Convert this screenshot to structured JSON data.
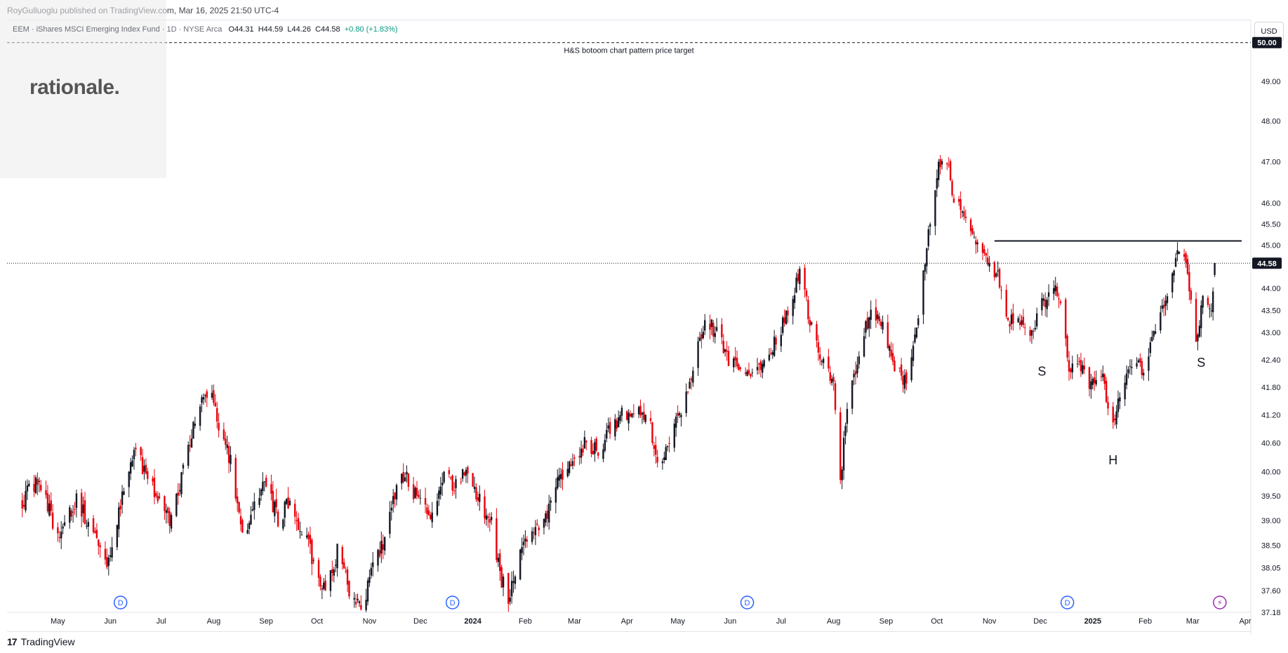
{
  "header": {
    "published_line": "RoyGulluoglu published on TradingView.com, Mar 16, 2025 21:50 UTC-4"
  },
  "legend": {
    "symbol": "EEM · iShares MSCI Emerging Index Fund · 1D · NYSE Arca",
    "open": "O44.31",
    "high": "H44.59",
    "low": "L44.26",
    "close": "C44.58",
    "change": "+0.80 (+1.83%)"
  },
  "watermark": {
    "text": "rationale."
  },
  "currency_button": "USD",
  "footer": {
    "logo_mark": "17",
    "brand": "TradingView"
  },
  "colors": {
    "up": "#131722",
    "down": "#e8000b",
    "dividend_marker": "#2962ff",
    "event_marker": "#9c27b0",
    "target_label_bg": "#131722"
  },
  "chart_data": {
    "type": "candlestick",
    "title": "",
    "xlabel": "",
    "ylabel": "",
    "ylim": [
      37.18,
      50.6
    ],
    "y_scale": "log",
    "y_ticks": [
      "50.00",
      "49.00",
      "48.00",
      "47.00",
      "46.00",
      "45.50",
      "45.00",
      "44.00",
      "43.50",
      "43.00",
      "42.40",
      "41.80",
      "41.20",
      "40.60",
      "40.00",
      "39.50",
      "39.00",
      "38.50",
      "38.05",
      "37.60",
      "37.18"
    ],
    "x_ticks": [
      "May",
      "Jun",
      "Jul",
      "Aug",
      "Sep",
      "Oct",
      "Nov",
      "Dec",
      "2024",
      "Feb",
      "Mar",
      "Apr",
      "May",
      "Jun",
      "Jul",
      "Aug",
      "Sep",
      "Oct",
      "Nov",
      "Dec",
      "2025",
      "Feb",
      "Mar",
      "Apr"
    ],
    "grid": false,
    "last_price": 44.58,
    "last_price_label": "44.58",
    "target_price": 50.0,
    "target_price_label": "50.00",
    "target_annotation": "H&S botoom chart pattern price target",
    "neckline_price": 45.1,
    "pattern_labels": [
      {
        "text": "S",
        "date": "2024-12-02",
        "price": 42.2
      },
      {
        "text": "H",
        "date": "2025-01-13",
        "price": 40.3
      },
      {
        "text": "S",
        "date": "2025-03-06",
        "price": 42.4
      }
    ],
    "dividend_markers": [
      {
        "text": "D",
        "date": "2023-06-07"
      },
      {
        "text": "D",
        "date": "2023-12-20"
      },
      {
        "text": "D",
        "date": "2024-06-11"
      },
      {
        "text": "D",
        "date": "2024-12-17"
      }
    ],
    "event_markers": [
      {
        "text": "⚡",
        "date": "2025-03-17"
      }
    ],
    "anchors": [
      [
        "2023-04-10",
        39.4
      ],
      [
        "2023-04-20",
        39.9
      ],
      [
        "2023-05-01",
        38.6
      ],
      [
        "2023-05-12",
        39.4
      ],
      [
        "2023-05-22",
        38.8
      ],
      [
        "2023-05-31",
        38.1
      ],
      [
        "2023-06-09",
        39.6
      ],
      [
        "2023-06-16",
        40.6
      ],
      [
        "2023-06-21",
        40.0
      ],
      [
        "2023-06-30",
        39.4
      ],
      [
        "2023-07-06",
        39.0
      ],
      [
        "2023-07-14",
        40.0
      ],
      [
        "2023-07-20",
        41.0
      ],
      [
        "2023-07-26",
        41.5
      ],
      [
        "2023-07-31",
        41.8
      ],
      [
        "2023-08-04",
        41.0
      ],
      [
        "2023-08-11",
        40.2
      ],
      [
        "2023-08-18",
        38.6
      ],
      [
        "2023-08-25",
        39.3
      ],
      [
        "2023-09-01",
        39.8
      ],
      [
        "2023-09-08",
        39.0
      ],
      [
        "2023-09-15",
        39.4
      ],
      [
        "2023-09-22",
        38.8
      ],
      [
        "2023-09-29",
        38.2
      ],
      [
        "2023-10-06",
        37.5
      ],
      [
        "2023-10-13",
        38.4
      ],
      [
        "2023-10-20",
        37.6
      ],
      [
        "2023-10-27",
        37.2
      ],
      [
        "2023-11-02",
        37.9
      ],
      [
        "2023-11-10",
        38.6
      ],
      [
        "2023-11-16",
        39.6
      ],
      [
        "2023-11-22",
        39.9
      ],
      [
        "2023-12-01",
        39.3
      ],
      [
        "2023-12-08",
        39.0
      ],
      [
        "2023-12-15",
        40.1
      ],
      [
        "2023-12-20",
        39.6
      ],
      [
        "2023-12-28",
        40.1
      ],
      [
        "2024-01-05",
        39.4
      ],
      [
        "2024-01-12",
        38.9
      ],
      [
        "2024-01-17",
        37.9
      ],
      [
        "2024-01-22",
        37.5
      ],
      [
        "2024-01-29",
        38.3
      ],
      [
        "2024-02-05",
        38.7
      ],
      [
        "2024-02-12",
        38.9
      ],
      [
        "2024-02-20",
        39.8
      ],
      [
        "2024-02-28",
        40.2
      ],
      [
        "2024-03-08",
        40.6
      ],
      [
        "2024-03-15",
        40.4
      ],
      [
        "2024-03-22",
        40.9
      ],
      [
        "2024-03-29",
        41.2
      ],
      [
        "2024-04-08",
        41.4
      ],
      [
        "2024-04-15",
        40.9
      ],
      [
        "2024-04-19",
        40.1
      ],
      [
        "2024-04-26",
        40.7
      ],
      [
        "2024-05-03",
        41.3
      ],
      [
        "2024-05-10",
        42.2
      ],
      [
        "2024-05-17",
        43.3
      ],
      [
        "2024-05-24",
        43.0
      ],
      [
        "2024-05-31",
        42.4
      ],
      [
        "2024-06-07",
        42.2
      ],
      [
        "2024-06-14",
        42.1
      ],
      [
        "2024-06-21",
        42.4
      ],
      [
        "2024-06-28",
        42.8
      ],
      [
        "2024-07-05",
        43.5
      ],
      [
        "2024-07-12",
        44.4
      ],
      [
        "2024-07-19",
        43.1
      ],
      [
        "2024-07-26",
        42.3
      ],
      [
        "2024-08-01",
        42.0
      ],
      [
        "2024-08-05",
        39.8
      ],
      [
        "2024-08-09",
        41.3
      ],
      [
        "2024-08-16",
        42.6
      ],
      [
        "2024-08-23",
        43.5
      ],
      [
        "2024-08-30",
        43.2
      ],
      [
        "2024-09-06",
        42.3
      ],
      [
        "2024-09-13",
        41.9
      ],
      [
        "2024-09-20",
        43.3
      ],
      [
        "2024-09-26",
        45.2
      ],
      [
        "2024-10-02",
        46.9
      ],
      [
        "2024-10-07",
        47.1
      ],
      [
        "2024-10-11",
        46.0
      ],
      [
        "2024-10-18",
        45.7
      ],
      [
        "2024-10-25",
        45.1
      ],
      [
        "2024-10-31",
        44.6
      ],
      [
        "2024-11-06",
        44.3
      ],
      [
        "2024-11-12",
        43.3
      ],
      [
        "2024-11-18",
        43.2
      ],
      [
        "2024-11-25",
        43.0
      ],
      [
        "2024-12-02",
        43.6
      ],
      [
        "2024-12-09",
        44.1
      ],
      [
        "2024-12-13",
        43.6
      ],
      [
        "2024-12-18",
        42.2
      ],
      [
        "2024-12-24",
        42.4
      ],
      [
        "2024-12-31",
        41.8
      ],
      [
        "2025-01-06",
        42.2
      ],
      [
        "2025-01-10",
        41.4
      ],
      [
        "2025-01-13",
        40.9
      ],
      [
        "2025-01-17",
        41.7
      ],
      [
        "2025-01-24",
        42.4
      ],
      [
        "2025-01-31",
        42.1
      ],
      [
        "2025-02-07",
        43.0
      ],
      [
        "2025-02-14",
        43.8
      ],
      [
        "2025-02-21",
        44.9
      ],
      [
        "2025-02-26",
        44.4
      ],
      [
        "2025-03-03",
        42.7
      ],
      [
        "2025-03-07",
        43.8
      ],
      [
        "2025-03-12",
        43.4
      ],
      [
        "2025-03-14",
        44.58
      ]
    ]
  }
}
